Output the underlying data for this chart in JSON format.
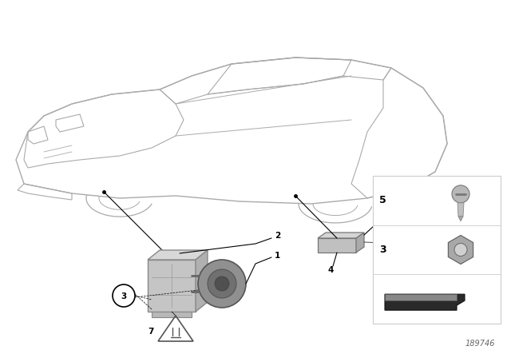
{
  "bg_color": "#ffffff",
  "part_number": "189746",
  "line_color": "#aaaaaa",
  "dark_line": "#555555",
  "black": "#000000",
  "gray1": "#c8c8c8",
  "gray2": "#b0b0b0",
  "gray3": "#989898",
  "car_outline": "#aaaaaa",
  "label_fontsize": 7.5,
  "part_num_fontsize": 7
}
